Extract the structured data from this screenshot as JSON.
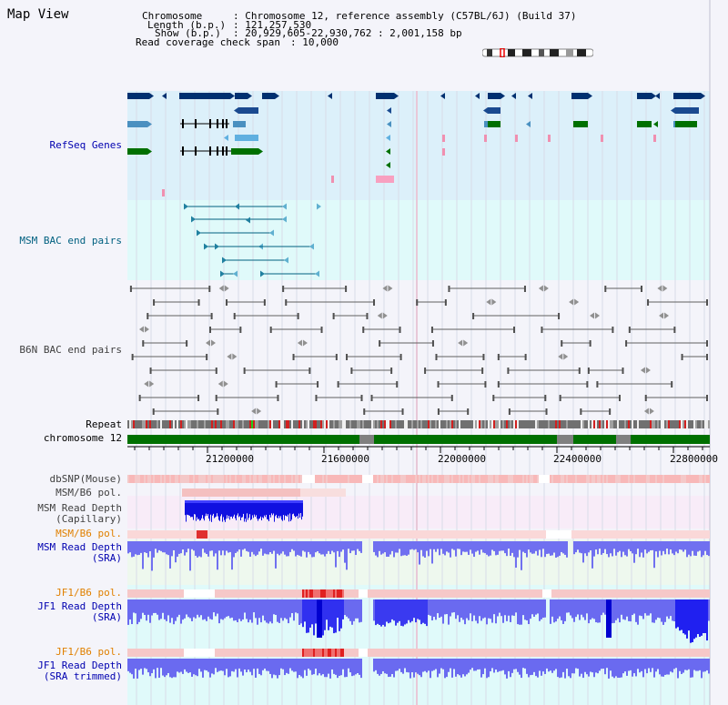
{
  "page": {
    "title": "Map View"
  },
  "header": {
    "chromosome_key": "Chromosome",
    "chromosome_value": ": Chromosome 12, reference assembly (C57BL/6J) (Build 37)",
    "length_key": "Length (b.p.)",
    "length_value": ": 121,257,530",
    "show_key": "Show (b.p.)",
    "show_value": ": 20,929,605-22,930,762 : 2,001,158 bp",
    "span_key": "Read coverage check span",
    "span_value": ": 10,000"
  },
  "tracks": {
    "refseq": "RefSeq Genes",
    "msm_bac": "MSM BAC end pairs",
    "b6n_bac": "B6N BAC end pairs",
    "repeat": "Repeat",
    "chromosome": "chromosome 12",
    "dbsnp": "dbSNP(Mouse)",
    "msm_b6_pol_1": "MSM/B6 pol.",
    "msm_read_depth_cap_1": "MSM Read Depth",
    "msm_read_depth_cap_2": "(Capillary)",
    "msm_b6_pol_2": "MSM/B6 pol.",
    "msm_read_depth_sra_1": "MSM Read Depth",
    "msm_read_depth_sra_2": "(SRA)",
    "jf1_b6_pol_1": "JF1/B6 pol.",
    "jf1_read_depth_sra_1": "JF1 Read Depth",
    "jf1_read_depth_sra_2": "(SRA)",
    "jf1_b6_pol_2": "JF1/B6 pol.",
    "jf1_read_depth_trim_1": "JF1 Read Depth",
    "jf1_read_depth_trim_2": "(SRA trimmed)"
  },
  "axis": {
    "ticks": [
      "21200000",
      "21600000",
      "22000000",
      "22400000",
      "22800000"
    ]
  },
  "colors": {
    "refseq_bg": "#dcf0fa",
    "msm_bg": "#e0fafa",
    "label_blue": "#0000b0",
    "label_teal": "#006080",
    "label_gray": "#404040",
    "label_orange": "#e08000",
    "chrom_green": "#007000",
    "depth_blue": "#6a6af0",
    "depth_dark": "#0000e0"
  }
}
